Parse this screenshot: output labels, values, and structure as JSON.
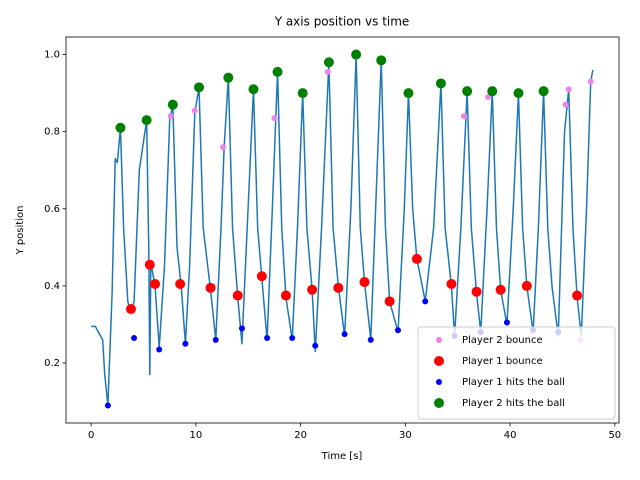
{
  "chart_data": {
    "type": "line",
    "title": "Y axis position vs time",
    "xlabel": "Time [s]",
    "ylabel": "Y position",
    "xlim": [
      -2.4,
      50.4
    ],
    "ylim": [
      0.0445,
      1.0455
    ],
    "xticks": [
      0,
      10,
      20,
      30,
      40,
      50
    ],
    "yticks": [
      0.2,
      0.4,
      0.6,
      0.8,
      {
        "value": 1.0,
        "label": "1.0"
      }
    ],
    "legend": "lower right",
    "series": [
      {
        "type": "line",
        "color": "#1f77b4",
        "x": [
          0,
          0.4,
          1.1,
          1.3,
          1.6,
          2.0,
          2.3,
          2.5,
          2.8,
          3.1,
          3.5,
          3.8,
          4.1,
          4.6,
          5.3,
          5.5,
          5.6,
          5.7,
          6.1,
          6.5,
          7.0,
          7.5,
          7.8,
          8.2,
          8.6,
          9.0,
          9.4,
          9.9,
          10.3,
          10.7,
          11.4,
          11.9,
          12.4,
          12.7,
          13.1,
          13.5,
          14.0,
          14.4,
          14.9,
          15.5,
          15.9,
          16.3,
          16.8,
          17.3,
          17.8,
          18.2,
          18.6,
          19.2,
          19.7,
          20.2,
          20.6,
          21.1,
          21.4,
          22.0,
          22.7,
          23.1,
          23.6,
          24.2,
          24.8,
          25.3,
          25.7,
          26.1,
          26.7,
          27.3,
          27.7,
          28.1,
          28.5,
          29.3,
          29.9,
          30.3,
          30.7,
          31.1,
          31.9,
          32.7,
          33.4,
          33.8,
          34.4,
          34.7,
          35.3,
          35.9,
          36.3,
          36.8,
          37.2,
          37.8,
          38.3,
          38.7,
          39.1,
          39.7,
          40.3,
          40.8,
          41.2,
          41.6,
          42.2,
          42.7,
          43.2,
          43.6,
          44.0,
          44.6,
          45.2,
          45.6,
          46.0,
          46.4,
          46.8,
          47.3,
          47.7,
          47.9
        ],
        "values": [
          0.295,
          0.295,
          0.26,
          0.17,
          0.09,
          0.38,
          0.73,
          0.72,
          0.81,
          0.55,
          0.36,
          0.33,
          0.36,
          0.7,
          0.83,
          0.5,
          0.17,
          0.46,
          0.4,
          0.24,
          0.45,
          0.83,
          0.87,
          0.5,
          0.4,
          0.25,
          0.45,
          0.85,
          0.915,
          0.55,
          0.39,
          0.26,
          0.55,
          0.76,
          0.94,
          0.55,
          0.37,
          0.25,
          0.55,
          0.91,
          0.55,
          0.42,
          0.26,
          0.6,
          0.955,
          0.55,
          0.37,
          0.26,
          0.55,
          0.9,
          0.55,
          0.39,
          0.23,
          0.55,
          0.98,
          0.55,
          0.4,
          0.27,
          0.6,
          1.0,
          0.55,
          0.41,
          0.26,
          0.7,
          0.985,
          0.55,
          0.36,
          0.28,
          0.6,
          0.9,
          0.6,
          0.47,
          0.36,
          0.55,
          0.925,
          0.55,
          0.4,
          0.27,
          0.55,
          0.905,
          0.55,
          0.38,
          0.28,
          0.6,
          0.905,
          0.55,
          0.39,
          0.3,
          0.6,
          0.9,
          0.55,
          0.4,
          0.28,
          0.55,
          0.905,
          0.55,
          0.4,
          0.27,
          0.8,
          0.91,
          0.55,
          0.37,
          0.27,
          0.6,
          0.93,
          0.96
        ]
      },
      {
        "type": "scatter",
        "name": "Player 2 bounce",
        "color": "#ee82ee",
        "marker_size": 3,
        "x": [
          7.6,
          9.9,
          12.6,
          17.5,
          22.6,
          35.6,
          37.9,
          45.3,
          45.6,
          47.7,
          46.7
        ],
        "values": [
          0.84,
          0.855,
          0.76,
          0.835,
          0.955,
          0.84,
          0.89,
          0.87,
          0.91,
          0.93,
          0.26
        ]
      },
      {
        "type": "scatter",
        "name": "Player 1 bounce",
        "color": "#ff0000",
        "marker_size": 5,
        "x": [
          3.8,
          5.6,
          6.1,
          8.5,
          11.4,
          14.0,
          16.3,
          18.6,
          21.1,
          23.6,
          26.1,
          28.5,
          31.1,
          34.4,
          36.8,
          39.1,
          41.6,
          46.4
        ],
        "values": [
          0.34,
          0.455,
          0.405,
          0.405,
          0.395,
          0.375,
          0.425,
          0.375,
          0.39,
          0.395,
          0.41,
          0.36,
          0.47,
          0.405,
          0.385,
          0.39,
          0.4,
          0.375
        ]
      },
      {
        "type": "scatter",
        "name": "Player 1 hits the ball",
        "color": "#0000ff",
        "marker_size": 3,
        "x": [
          1.6,
          4.1,
          6.5,
          9.0,
          11.9,
          14.4,
          16.8,
          19.2,
          21.4,
          24.2,
          26.7,
          29.3,
          31.9,
          34.7,
          37.2,
          39.7,
          42.2,
          44.6
        ],
        "values": [
          0.09,
          0.265,
          0.235,
          0.25,
          0.26,
          0.29,
          0.265,
          0.265,
          0.245,
          0.275,
          0.26,
          0.285,
          0.36,
          0.27,
          0.28,
          0.305,
          0.285,
          0.28
        ]
      },
      {
        "type": "scatter",
        "name": "Player 2 hits the ball",
        "color": "#008000",
        "marker_size": 5,
        "x": [
          2.8,
          5.3,
          7.8,
          10.3,
          13.1,
          15.5,
          17.8,
          20.2,
          22.7,
          25.3,
          27.7,
          30.3,
          33.4,
          35.9,
          38.3,
          40.8,
          43.2
        ],
        "values": [
          0.81,
          0.83,
          0.87,
          0.915,
          0.94,
          0.91,
          0.955,
          0.9,
          0.98,
          1.0,
          0.985,
          0.9,
          0.925,
          0.905,
          0.905,
          0.9,
          0.905
        ]
      }
    ]
  }
}
